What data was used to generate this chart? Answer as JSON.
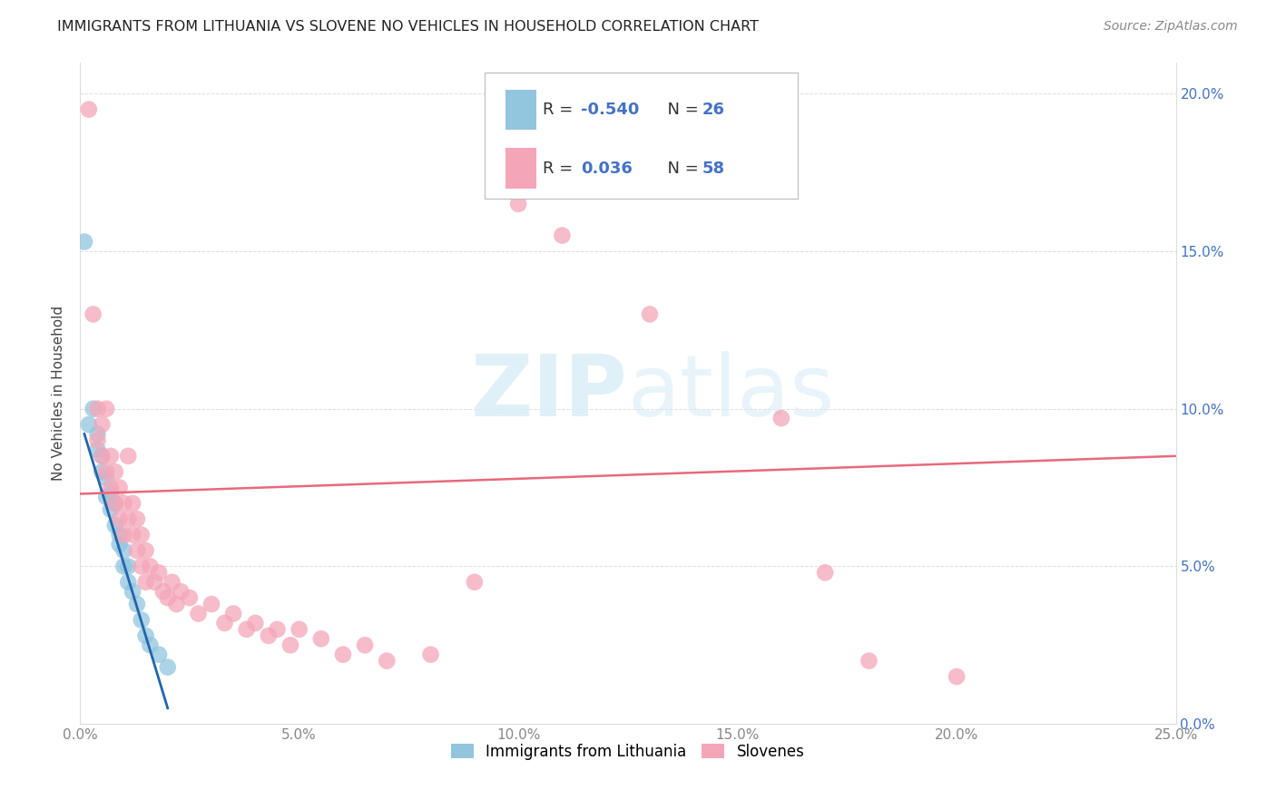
{
  "title": "IMMIGRANTS FROM LITHUANIA VS SLOVENE NO VEHICLES IN HOUSEHOLD CORRELATION CHART",
  "source": "Source: ZipAtlas.com",
  "ylabel": "No Vehicles in Household",
  "xlim": [
    0.0,
    0.25
  ],
  "ylim": [
    0.0,
    0.21
  ],
  "legend_labels": [
    "Immigrants from Lithuania",
    "Slovenes"
  ],
  "legend_r_values": [
    "-0.540",
    "0.036"
  ],
  "legend_n_values": [
    "26",
    "58"
  ],
  "blue_color": "#92c5de",
  "pink_color": "#f4a6b8",
  "blue_line_color": "#2166ac",
  "pink_line_color": "#e8697d",
  "watermark_color": "#daeef7",
  "blue_scatter_x": [
    0.001,
    0.002,
    0.003,
    0.004,
    0.004,
    0.005,
    0.005,
    0.006,
    0.006,
    0.007,
    0.007,
    0.008,
    0.008,
    0.009,
    0.009,
    0.01,
    0.01,
    0.011,
    0.011,
    0.012,
    0.013,
    0.014,
    0.015,
    0.016,
    0.018,
    0.02
  ],
  "blue_scatter_y": [
    0.153,
    0.095,
    0.1,
    0.092,
    0.087,
    0.085,
    0.08,
    0.078,
    0.072,
    0.073,
    0.068,
    0.07,
    0.063,
    0.06,
    0.057,
    0.055,
    0.05,
    0.05,
    0.045,
    0.042,
    0.038,
    0.033,
    0.028,
    0.025,
    0.022,
    0.018
  ],
  "pink_scatter_x": [
    0.002,
    0.003,
    0.004,
    0.004,
    0.005,
    0.005,
    0.006,
    0.006,
    0.007,
    0.007,
    0.008,
    0.008,
    0.009,
    0.009,
    0.01,
    0.01,
    0.011,
    0.011,
    0.012,
    0.012,
    0.013,
    0.013,
    0.014,
    0.014,
    0.015,
    0.015,
    0.016,
    0.017,
    0.018,
    0.019,
    0.02,
    0.021,
    0.022,
    0.023,
    0.025,
    0.027,
    0.03,
    0.033,
    0.035,
    0.038,
    0.04,
    0.043,
    0.045,
    0.048,
    0.05,
    0.055,
    0.06,
    0.065,
    0.07,
    0.08,
    0.09,
    0.1,
    0.11,
    0.13,
    0.16,
    0.17,
    0.18,
    0.2
  ],
  "pink_scatter_y": [
    0.195,
    0.13,
    0.1,
    0.09,
    0.085,
    0.095,
    0.08,
    0.1,
    0.075,
    0.085,
    0.07,
    0.08,
    0.065,
    0.075,
    0.06,
    0.07,
    0.085,
    0.065,
    0.06,
    0.07,
    0.055,
    0.065,
    0.05,
    0.06,
    0.055,
    0.045,
    0.05,
    0.045,
    0.048,
    0.042,
    0.04,
    0.045,
    0.038,
    0.042,
    0.04,
    0.035,
    0.038,
    0.032,
    0.035,
    0.03,
    0.032,
    0.028,
    0.03,
    0.025,
    0.03,
    0.027,
    0.022,
    0.025,
    0.02,
    0.022,
    0.045,
    0.165,
    0.155,
    0.13,
    0.097,
    0.048,
    0.02,
    0.015
  ],
  "blue_line_x": [
    0.001,
    0.02
  ],
  "blue_line_y": [
    0.092,
    0.005
  ],
  "pink_line_x": [
    0.0,
    0.25
  ],
  "pink_line_y": [
    0.073,
    0.085
  ],
  "tick_color": "#888888",
  "right_tick_color": "#4472c4",
  "grid_color": "#dddddd"
}
